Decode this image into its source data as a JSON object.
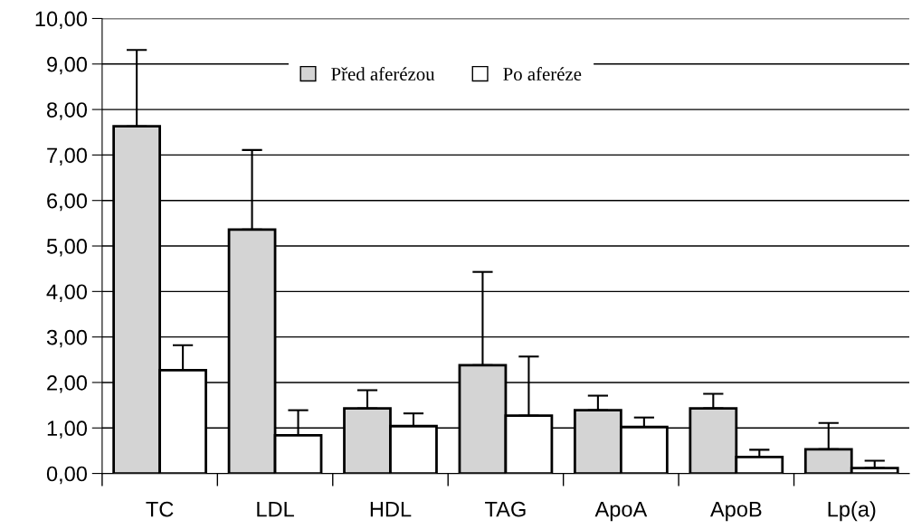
{
  "chart_data": {
    "type": "bar",
    "categories": [
      "TC",
      "LDL",
      "HDL",
      "TAG",
      "ApoA",
      "ApoB",
      "Lp(a)"
    ],
    "series": [
      {
        "name": "Před aferézou",
        "color": "#d4d4d4",
        "values": [
          7.63,
          5.36,
          1.43,
          2.38,
          1.39,
          1.43,
          0.53
        ],
        "errors": [
          [
            7.63,
            9.31
          ],
          [
            5.36,
            7.11
          ],
          [
            1.43,
            1.83
          ],
          [
            2.38,
            4.43
          ],
          [
            1.39,
            1.71
          ],
          [
            1.43,
            1.75
          ],
          [
            0.53,
            1.11
          ]
        ]
      },
      {
        "name": "Po aferéze",
        "color": "#ffffff",
        "values": [
          2.27,
          0.84,
          1.04,
          1.27,
          1.02,
          0.36,
          0.12
        ],
        "errors": [
          [
            2.27,
            2.82
          ],
          [
            0.84,
            1.39
          ],
          [
            1.04,
            1.32
          ],
          [
            1.27,
            2.57
          ],
          [
            1.02,
            1.23
          ],
          [
            0.36,
            0.52
          ],
          [
            0.12,
            0.28
          ]
        ]
      }
    ],
    "ylim": [
      0,
      10
    ],
    "yticks": [
      {
        "value": 0,
        "label": "0,00"
      },
      {
        "value": 1,
        "label": "1,00"
      },
      {
        "value": 2,
        "label": "2,00"
      },
      {
        "value": 3,
        "label": "3,00"
      },
      {
        "value": 4,
        "label": "4,00"
      },
      {
        "value": 5,
        "label": "5,00"
      },
      {
        "value": 6,
        "label": "6,00"
      },
      {
        "value": 7,
        "label": "7,00"
      },
      {
        "value": 8,
        "label": "8,00"
      },
      {
        "value": 9,
        "label": "9,00"
      },
      {
        "value": 10,
        "label": "10,00"
      }
    ],
    "grid": "y",
    "legend": "top"
  }
}
